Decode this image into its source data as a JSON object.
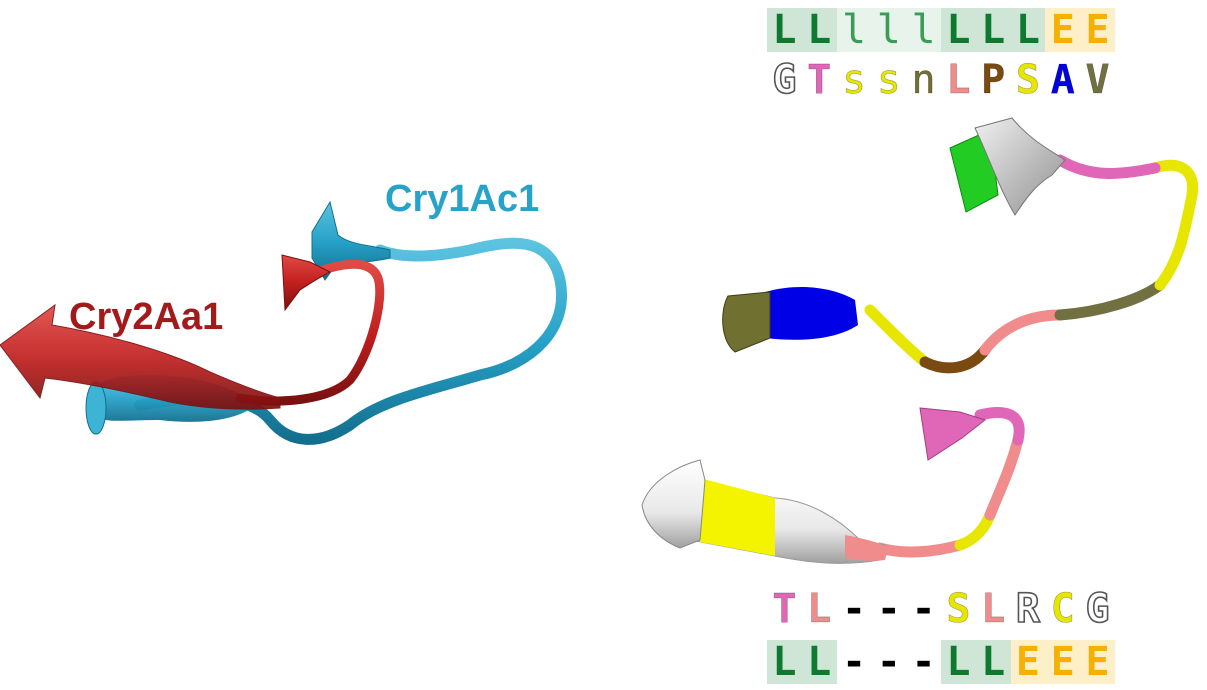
{
  "labels": {
    "cry1ac1": "Cry1Ac1",
    "cry2aa1": "Cry2Aa1"
  },
  "colors": {
    "cry1ac1": "#27a2c8",
    "cry2aa1": "#c1201f",
    "ss_L_bg": "#cfe6d6",
    "ss_l_bg": "#e8f3eb",
    "ss_E_bg": "#fdefc8",
    "ss_L_fg": "#0e7a30",
    "ss_l_fg": "#3b9c58",
    "ss_E_fg": "#f5b000"
  },
  "top_sequence": {
    "ss": [
      "L",
      "L",
      "l",
      "l",
      "l",
      "L",
      "L",
      "L",
      "E",
      "E"
    ],
    "aa": [
      "G",
      "T",
      "s",
      "s",
      "n",
      "L",
      "P",
      "S",
      "A",
      "V"
    ],
    "aa_colors": [
      "#ffffff",
      "#e066b8",
      "#e6e600",
      "#e6e600",
      "#707030",
      "#f08c8c",
      "#7a4a10",
      "#e6e600",
      "#0000e0",
      "#707040"
    ]
  },
  "bottom_sequence": {
    "aa": [
      "T",
      "L",
      "-",
      "-",
      "-",
      "S",
      "L",
      "R",
      "C",
      "G"
    ],
    "ss": [
      "L",
      "L",
      "-",
      "-",
      "-",
      "L",
      "L",
      "E",
      "E",
      "E"
    ],
    "aa_colors": [
      "#e066b8",
      "#f08c8c",
      "#000000",
      "#000000",
      "#000000",
      "#e6e600",
      "#f08c8c",
      "#ffffff",
      "#e6e600",
      "#ffffff"
    ]
  }
}
